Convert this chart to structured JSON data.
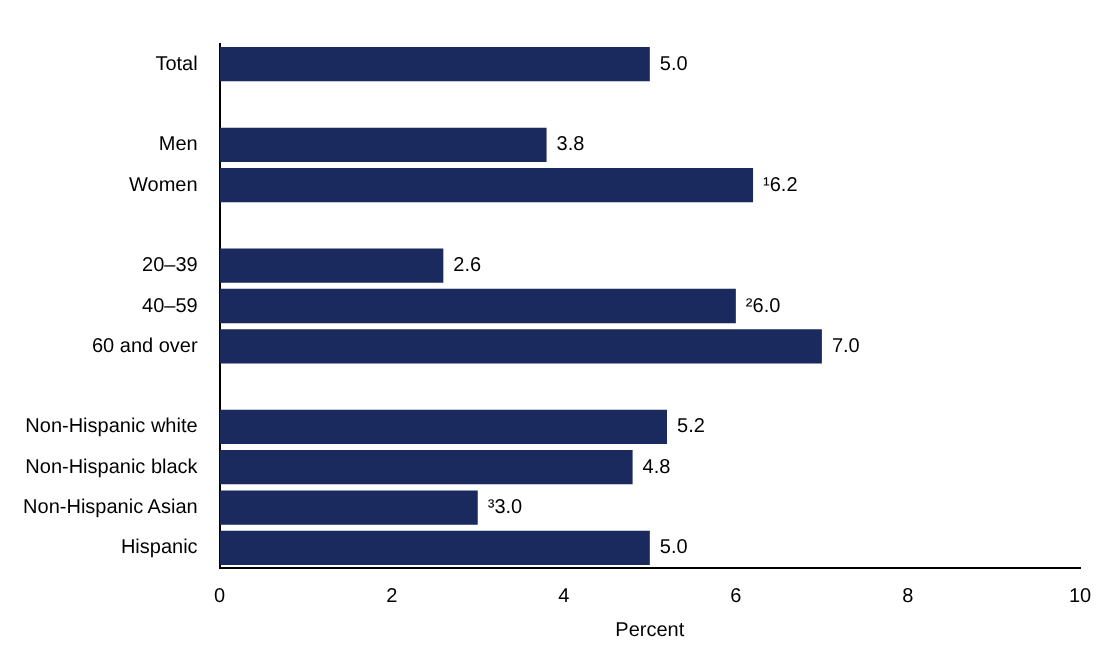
{
  "chart_data": {
    "type": "bar",
    "orientation": "horizontal",
    "xlabel": "Percent",
    "categories": [
      "Total",
      null,
      "Men",
      "Women",
      null,
      "20–39",
      "40–59",
      "60 and over",
      null,
      "Non-Hispanic white",
      "Non-Hispanic black",
      "Non-Hispanic Asian",
      "Hispanic"
    ],
    "values": [
      5.0,
      null,
      3.8,
      6.2,
      null,
      2.6,
      6.0,
      7.0,
      null,
      5.2,
      4.8,
      3.0,
      5.0
    ],
    "value_labels": [
      "5.0",
      null,
      "3.8",
      "¹6.2",
      null,
      "2.6",
      "²6.0",
      "7.0",
      null,
      "5.2",
      "4.8",
      "³3.0",
      "5.0"
    ],
    "color": "#1b2a5e",
    "xlim": [
      0,
      10
    ],
    "xticks": [
      0,
      2,
      4,
      6,
      8,
      10
    ],
    "grid": false,
    "legend": false
  }
}
